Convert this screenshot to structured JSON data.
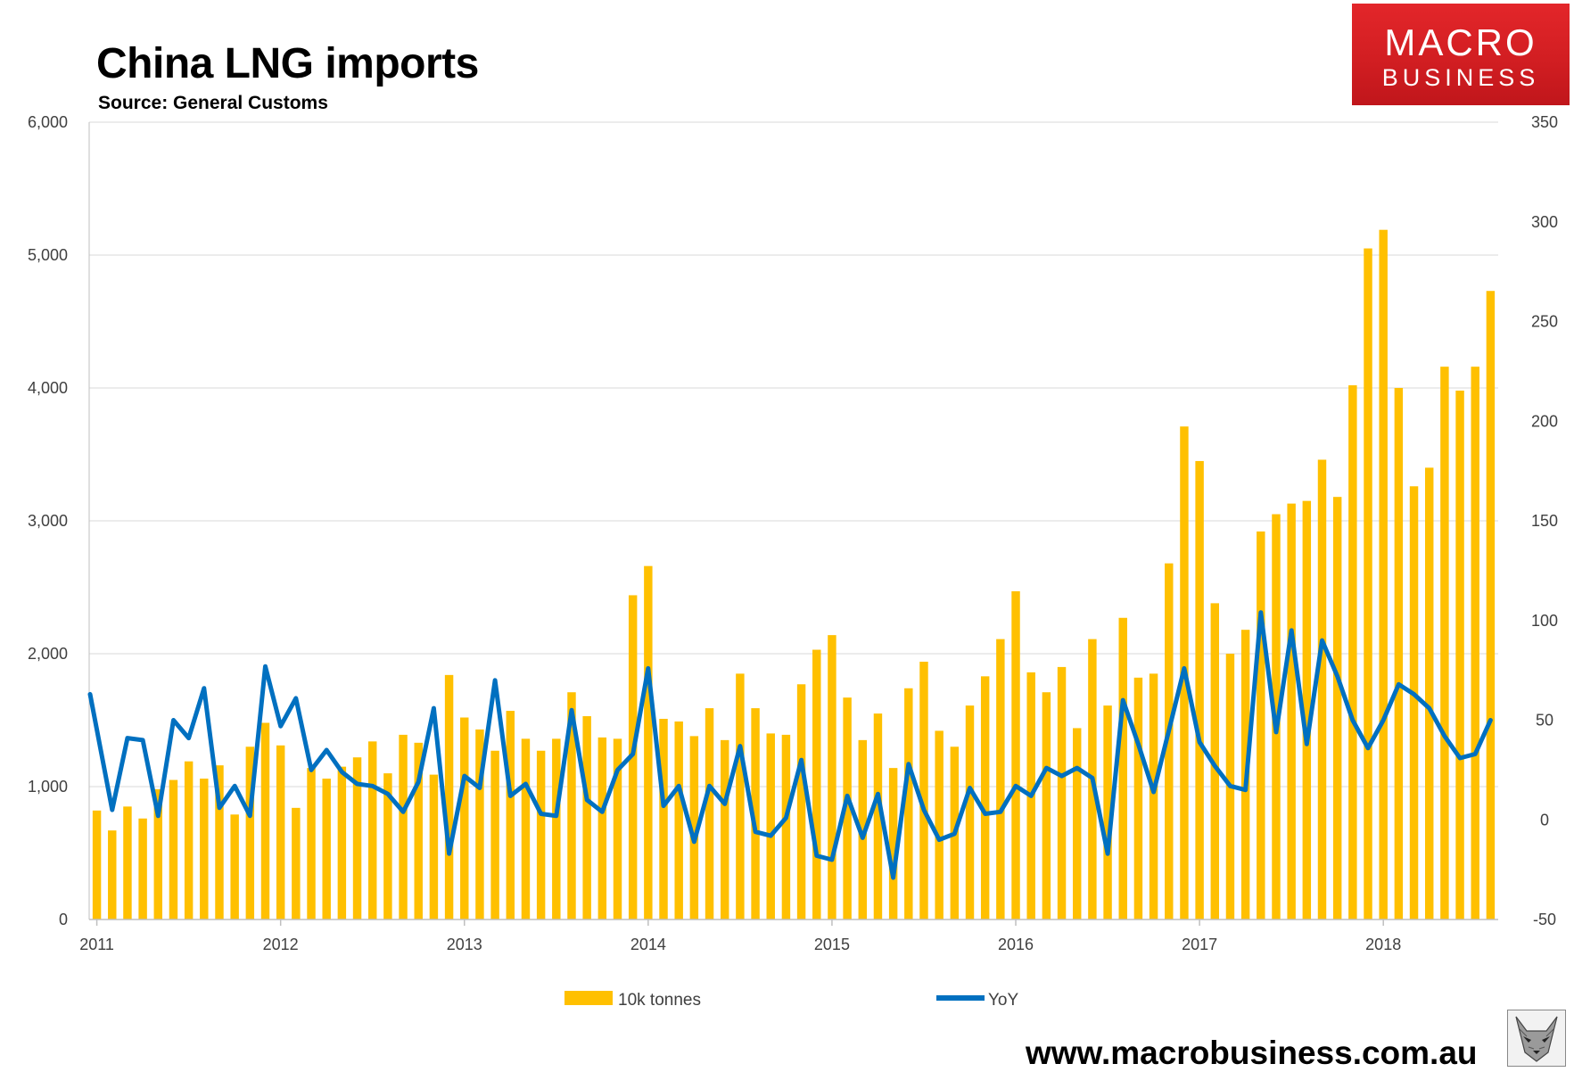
{
  "title": "China LNG imports",
  "subtitle": "Source: General Customs",
  "brand": {
    "line1": "MACRO",
    "line2": "BUSINESS"
  },
  "website": "www.macrobusiness.com.au",
  "colors": {
    "bars": "#FFC000",
    "line": "#0070C0",
    "grid": "#d9d9d9",
    "axis": "#bfbfbf",
    "brand_red": "#d42025"
  },
  "chart_data": {
    "type": "bar",
    "x_labels": [
      "2011",
      "2012",
      "2013",
      "2014",
      "2015",
      "2016",
      "2017",
      "2018"
    ],
    "left_axis": {
      "ylim": [
        0,
        6000
      ],
      "ticks": [
        "0",
        "1,000",
        "2,000",
        "3,000",
        "4,000",
        "5,000",
        "6,000"
      ]
    },
    "right_axis": {
      "ylim": [
        -50,
        350
      ],
      "ticks": [
        "-50",
        "0",
        "50",
        "100",
        "150",
        "200",
        "250",
        "300",
        "350"
      ]
    },
    "grid": true,
    "legend_position": "bottom",
    "series": [
      {
        "name": "10k tonnes",
        "kind": "bar",
        "axis": "left",
        "values": [
          820,
          670,
          850,
          760,
          980,
          1050,
          1190,
          1060,
          1160,
          790,
          1300,
          1480,
          1310,
          840,
          1140,
          1060,
          1150,
          1220,
          1340,
          1100,
          1390,
          1330,
          1090,
          1840,
          1520,
          1430,
          1270,
          1570,
          1360,
          1270,
          1360,
          1710,
          1530,
          1370,
          1360,
          2440,
          2660,
          1510,
          1490,
          1380,
          1590,
          1350,
          1850,
          1590,
          1400,
          1390,
          1770,
          2030,
          2140,
          1670,
          1350,
          1550,
          1140,
          1740,
          1940,
          1420,
          1300,
          1610,
          1830,
          2110,
          2470,
          1860,
          1710,
          1900,
          1440,
          2110,
          1610,
          2270,
          1820,
          1850,
          2680,
          3710,
          3450,
          2380,
          2000,
          2180,
          2920,
          3050,
          3130,
          3150,
          3460,
          3180,
          4020,
          5050,
          5190,
          4000,
          3260,
          3400,
          4160,
          3980,
          4160,
          4730
        ]
      },
      {
        "name": "YoY",
        "kind": "line",
        "axis": "right",
        "values": [
          63,
          5,
          41,
          40,
          2,
          50,
          41,
          66,
          6,
          17,
          2,
          77,
          47,
          61,
          25,
          35,
          24,
          18,
          17,
          13,
          4,
          19,
          56,
          -17,
          22,
          16,
          70,
          12,
          18,
          3,
          2,
          55,
          10,
          4,
          25,
          33,
          76,
          7,
          17,
          -11,
          17,
          8,
          37,
          -6,
          -8,
          1,
          30,
          -18,
          -20,
          12,
          -9,
          13,
          -29,
          28,
          5,
          -10,
          -7,
          16,
          3,
          4,
          17,
          12,
          26,
          22,
          26,
          21,
          -17,
          60,
          38,
          14,
          45,
          76,
          39,
          27,
          17,
          15,
          104,
          44,
          95,
          38,
          90,
          72,
          50,
          36,
          50,
          68,
          63,
          56,
          42,
          31,
          33,
          50
        ]
      }
    ]
  }
}
